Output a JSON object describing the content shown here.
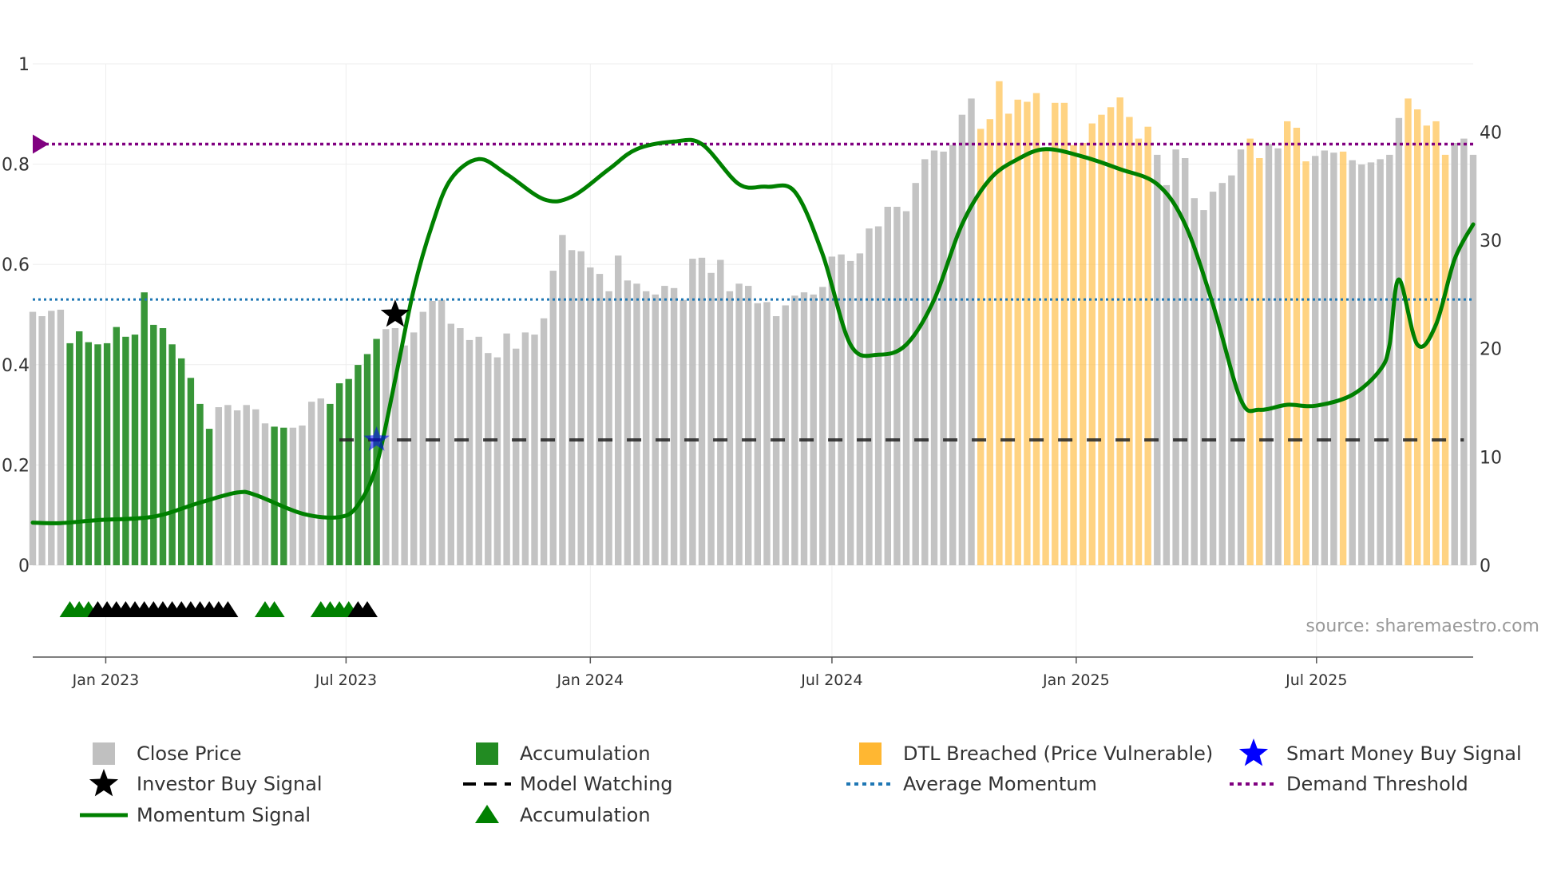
{
  "chart_data": {
    "type": "bar",
    "source_label": "source: sharemaestro.com",
    "left_axis": {
      "range": [
        0,
        1
      ],
      "ticks": [
        0,
        0.2,
        0.4,
        0.6,
        0.8,
        1
      ],
      "tick_labels": [
        "0",
        "0.2",
        "0.4",
        "0.6",
        "0.8",
        "1"
      ]
    },
    "right_axis": {
      "range": [
        0,
        46.3
      ],
      "ticks": [
        0,
        10,
        20,
        30,
        40
      ],
      "tick_labels": [
        "0",
        "10",
        "20",
        "30",
        "40"
      ]
    },
    "x_axis": {
      "start": "2022-11-07",
      "end": "2025-10-27",
      "ticks": [
        "2023-01-01",
        "2023-07-01",
        "2024-01-01",
        "2024-07-01",
        "2025-01-01",
        "2025-07-01"
      ],
      "tick_labels": [
        "Jan 2023",
        "Jul 2023",
        "Jan 2024",
        "Jul 2024",
        "Jan 2025",
        "Jul 2025"
      ]
    },
    "colors": {
      "close_price": "#bdbdbd",
      "accumulation": "#228b22",
      "dtl_breached": "#ffc04d",
      "momentum": "#008000",
      "average_momentum": "#1f77b4",
      "demand_threshold": "#800080",
      "model_watching": "#222222",
      "investor_signal": "#000000",
      "smart_money_signal": "#0000ff",
      "accumulation_marker": "#008000"
    },
    "series": [
      {
        "name": "Close Price (weekly bars)",
        "axis": "right",
        "start_date": "2022-11-07",
        "interval_days": 7,
        "values": [
          23.4,
          23.0,
          23.5,
          23.6,
          20.5,
          21.6,
          20.6,
          20.4,
          20.5,
          22.0,
          21.1,
          21.3,
          25.2,
          22.2,
          21.9,
          20.4,
          19.1,
          17.3,
          14.9,
          12.6,
          14.6,
          14.8,
          14.3,
          14.8,
          14.4,
          13.1,
          12.8,
          12.7,
          12.7,
          12.9,
          15.1,
          15.4,
          14.9,
          16.8,
          17.2,
          18.5,
          19.5,
          20.9,
          21.8,
          21.9,
          20.3,
          21.5,
          23.4,
          24.4,
          24.5,
          22.3,
          21.9,
          20.8,
          21.1,
          19.6,
          19.2,
          21.4,
          20.0,
          21.5,
          21.3,
          22.8,
          27.2,
          30.5,
          29.1,
          29.0,
          27.5,
          26.9,
          25.3,
          28.6,
          26.3,
          26.0,
          25.3,
          25.0,
          25.8,
          25.6,
          24.5,
          28.3,
          28.4,
          27.0,
          28.2,
          25.3,
          26.0,
          25.8,
          24.2,
          24.3,
          23.0,
          24.0,
          24.9,
          25.2,
          25.0,
          25.7,
          28.5,
          28.7,
          28.1,
          28.8,
          31.1,
          31.3,
          33.1,
          33.1,
          32.7,
          35.3,
          37.5,
          38.3,
          38.2,
          38.8,
          41.6,
          43.1,
          40.3,
          41.2,
          44.7,
          41.7,
          43.0,
          42.8,
          43.6,
          38.4,
          42.7,
          42.7,
          38.8,
          39.0,
          40.8,
          41.6,
          42.3,
          43.2,
          41.4,
          39.4,
          40.5,
          37.9,
          35.1,
          38.4,
          37.6,
          33.9,
          32.8,
          34.5,
          35.3,
          36.0,
          38.4,
          39.4,
          37.6,
          38.9,
          38.5,
          41.0,
          40.4,
          37.3,
          37.8,
          38.3,
          38.1,
          38.2,
          37.4,
          37.0,
          37.2,
          37.5,
          37.9,
          41.3,
          43.1,
          42.1,
          40.6,
          41.0,
          37.9,
          39.0,
          39.4,
          37.9
        ]
      },
      {
        "name": "Momentum Signal",
        "axis": "left",
        "points": [
          [
            "2022-11-07",
            0.085
          ],
          [
            "2022-11-28",
            0.084
          ],
          [
            "2022-12-26",
            0.09
          ],
          [
            "2023-02-06",
            0.097
          ],
          [
            "2023-03-13",
            0.125
          ],
          [
            "2023-04-10",
            0.145
          ],
          [
            "2023-04-24",
            0.14
          ],
          [
            "2023-05-29",
            0.103
          ],
          [
            "2023-06-26",
            0.096
          ],
          [
            "2023-07-10",
            0.12
          ],
          [
            "2023-07-24",
            0.2
          ],
          [
            "2023-08-07",
            0.37
          ],
          [
            "2023-08-21",
            0.55
          ],
          [
            "2023-09-04",
            0.68
          ],
          [
            "2023-09-18",
            0.77
          ],
          [
            "2023-10-09",
            0.81
          ],
          [
            "2023-10-30",
            0.78
          ],
          [
            "2023-11-27",
            0.73
          ],
          [
            "2023-12-18",
            0.735
          ],
          [
            "2024-01-15",
            0.79
          ],
          [
            "2024-02-05",
            0.83
          ],
          [
            "2024-03-04",
            0.845
          ],
          [
            "2024-03-25",
            0.84
          ],
          [
            "2024-04-22",
            0.76
          ],
          [
            "2024-05-13",
            0.755
          ],
          [
            "2024-06-03",
            0.745
          ],
          [
            "2024-06-24",
            0.62
          ],
          [
            "2024-07-15",
            0.44
          ],
          [
            "2024-08-05",
            0.42
          ],
          [
            "2024-08-26",
            0.44
          ],
          [
            "2024-09-16",
            0.53
          ],
          [
            "2024-10-07",
            0.68
          ],
          [
            "2024-10-28",
            0.77
          ],
          [
            "2024-11-18",
            0.81
          ],
          [
            "2024-12-09",
            0.83
          ],
          [
            "2025-01-06",
            0.815
          ],
          [
            "2025-02-03",
            0.79
          ],
          [
            "2025-03-03",
            0.76
          ],
          [
            "2025-03-24",
            0.68
          ],
          [
            "2025-04-14",
            0.52
          ],
          [
            "2025-05-05",
            0.33
          ],
          [
            "2025-05-19",
            0.31
          ],
          [
            "2025-06-09",
            0.32
          ],
          [
            "2025-06-30",
            0.318
          ],
          [
            "2025-07-28",
            0.34
          ],
          [
            "2025-08-18",
            0.39
          ],
          [
            "2025-08-25",
            0.44
          ],
          [
            "2025-09-01",
            0.57
          ],
          [
            "2025-09-15",
            0.44
          ],
          [
            "2025-09-29",
            0.48
          ],
          [
            "2025-10-13",
            0.61
          ],
          [
            "2025-10-27",
            0.68
          ]
        ]
      },
      {
        "name": "Average Momentum",
        "axis": "left",
        "value": 0.53
      },
      {
        "name": "Demand Threshold",
        "axis": "left",
        "value": 0.84
      },
      {
        "name": "Model Watching",
        "axis": "left",
        "value": 0.25,
        "x_start": "2023-06-26",
        "x_end": "2025-10-20"
      }
    ],
    "highlights": {
      "accumulation_week_ranges": [
        [
          4,
          19
        ],
        [
          26,
          27
        ],
        [
          32,
          37
        ]
      ],
      "dtl_breached_week_ranges": [
        [
          102,
          120
        ],
        [
          131,
          132
        ],
        [
          135,
          137
        ],
        [
          141,
          141
        ],
        [
          148,
          152
        ]
      ]
    },
    "signals": {
      "investor_buy": [
        {
          "date": "2023-08-07",
          "value": 0.5
        }
      ],
      "smart_money_buy": [
        {
          "date": "2023-07-24",
          "value": 0.25
        }
      ],
      "accumulation_markers_green": [
        "2022-12-05",
        "2022-12-12",
        "2022-12-19",
        "2023-05-01",
        "2023-05-08",
        "2023-06-12",
        "2023-06-19",
        "2023-06-26",
        "2023-07-03"
      ],
      "accumulation_markers_black": [
        "2022-12-26",
        "2023-01-02",
        "2023-01-09",
        "2023-01-16",
        "2023-01-23",
        "2023-01-30",
        "2023-02-06",
        "2023-02-13",
        "2023-02-20",
        "2023-02-27",
        "2023-03-06",
        "2023-03-13",
        "2023-03-20",
        "2023-03-27",
        "2023-04-03",
        "2023-07-10",
        "2023-07-17"
      ]
    },
    "legend": [
      {
        "label": "Close Price",
        "symbol": "square",
        "color": "#bdbdbd"
      },
      {
        "label": "Accumulation",
        "symbol": "square",
        "color": "#228b22"
      },
      {
        "label": "DTL Breached (Price Vulnerable)",
        "symbol": "square",
        "color": "#ffb732"
      },
      {
        "label": "Smart Money Buy Signal",
        "symbol": "star",
        "color": "#0000ff"
      },
      {
        "label": "Investor Buy Signal",
        "symbol": "star",
        "color": "#000000"
      },
      {
        "label": "Model Watching",
        "symbol": "dash",
        "color": "#000000"
      },
      {
        "label": "Average Momentum",
        "symbol": "dot",
        "color": "#1f77b4"
      },
      {
        "label": "Demand Threshold",
        "symbol": "dot",
        "color": "#800080"
      },
      {
        "label": "Momentum Signal",
        "symbol": "line",
        "color": "#008000"
      },
      {
        "label": "Accumulation",
        "symbol": "triangle",
        "color": "#008000"
      }
    ]
  }
}
